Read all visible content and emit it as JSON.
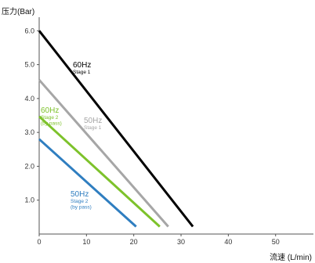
{
  "chart_data": {
    "type": "line",
    "ylabel": "压力(Bar)",
    "xlabel": "流速 (L/min)",
    "xlim": [
      0,
      58
    ],
    "ylim": [
      0,
      6.4
    ],
    "x_ticks": [
      "0",
      "10",
      "20",
      "30",
      "40",
      "50"
    ],
    "y_ticks": [
      "1.0",
      "2.0",
      "3.0",
      "4.0",
      "5.0",
      "6.0"
    ],
    "x_tick_values": [
      0,
      10,
      20,
      30,
      40,
      50
    ],
    "y_tick_values": [
      1,
      2,
      3,
      4,
      5,
      6
    ],
    "grid": false,
    "series": [
      {
        "name": "60Hz Stage 1",
        "title": "60Hz",
        "sub": [
          "Stage 1"
        ],
        "color": "#000000",
        "x": [
          0,
          32.5
        ],
        "y": [
          6.0,
          0.22
        ]
      },
      {
        "name": "50Hz Stage 1",
        "title": "50Hz",
        "sub": [
          "Stage 1"
        ],
        "color": "#a6a6a6",
        "x": [
          0,
          27.3
        ],
        "y": [
          4.55,
          0.22
        ]
      },
      {
        "name": "60Hz Stage 2 (by pass)",
        "title": "60Hz",
        "sub": [
          "Stage 2",
          "(by pass)"
        ],
        "color": "#7dc22b",
        "x": [
          0,
          25.5
        ],
        "y": [
          3.47,
          0.22
        ]
      },
      {
        "name": "50Hz Stage 2 (by pass)",
        "title": "50Hz",
        "sub": [
          "Stage 2",
          "(by pass)"
        ],
        "color": "#2f7ec0",
        "x": [
          0,
          20.5
        ],
        "y": [
          2.8,
          0.22
        ]
      }
    ]
  }
}
